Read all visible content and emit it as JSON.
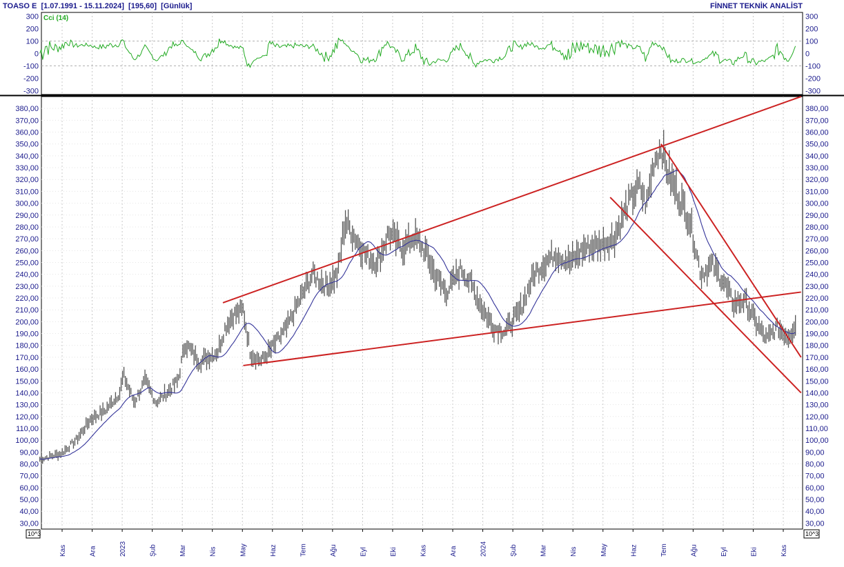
{
  "header": {
    "symbol": "TOASO E",
    "range": "[1.07.1991 - 15.11.2024]",
    "last": "[195,60]",
    "period": "[Günlük]",
    "brand": "FİNNET TEKNİK ANALİST"
  },
  "chart_data": [
    {
      "type": "line",
      "panel": "cci",
      "series_label": "Cci (14)",
      "color": "#22aa22",
      "y_ticks": [
        300,
        200,
        100,
        0,
        -100,
        -200,
        -300
      ],
      "ylim": [
        -330,
        330
      ],
      "guide_levels": [
        100,
        -100
      ],
      "note": "oscillator values sampled along the time axis (x = 0..1 across the plotted date range)"
    },
    {
      "type": "ohlc",
      "panel": "price",
      "ylim": [
        25,
        390
      ],
      "y_ticks": [
        380,
        370,
        360,
        350,
        340,
        330,
        320,
        310,
        300,
        290,
        280,
        270,
        260,
        250,
        240,
        230,
        220,
        210,
        200,
        190,
        180,
        170,
        160,
        150,
        140,
        130,
        120,
        110,
        100,
        90,
        80,
        70,
        60,
        50,
        40,
        30
      ],
      "y_tick_format": "comma2",
      "scale_note": "10^3",
      "x_month_labels": [
        "Kas",
        "Ara",
        "2023",
        "Şub",
        "Mar",
        "Nis",
        "May",
        "Haz",
        "Tem",
        "Ağu",
        "Eyl",
        "Eki",
        "Kas",
        "Ara",
        "2024",
        "Şub",
        "Mar",
        "Nis",
        "May",
        "Haz",
        "Tem",
        "Ağu",
        "Eyl",
        "Eki",
        "Kas"
      ],
      "price_path": [
        [
          0.0,
          84
        ],
        [
          0.03,
          89
        ],
        [
          0.05,
          100
        ],
        [
          0.07,
          118
        ],
        [
          0.09,
          125
        ],
        [
          0.11,
          140
        ],
        [
          0.115,
          155
        ],
        [
          0.13,
          132
        ],
        [
          0.145,
          150
        ],
        [
          0.16,
          132
        ],
        [
          0.175,
          140
        ],
        [
          0.19,
          150
        ],
        [
          0.2,
          182
        ],
        [
          0.22,
          166
        ],
        [
          0.245,
          175
        ],
        [
          0.255,
          195
        ],
        [
          0.265,
          205
        ],
        [
          0.28,
          210
        ],
        [
          0.29,
          173
        ],
        [
          0.305,
          167
        ],
        [
          0.32,
          178
        ],
        [
          0.34,
          195
        ],
        [
          0.355,
          215
        ],
        [
          0.375,
          240
        ],
        [
          0.395,
          230
        ],
        [
          0.41,
          240
        ],
        [
          0.42,
          285
        ],
        [
          0.43,
          275
        ],
        [
          0.45,
          255
        ],
        [
          0.465,
          250
        ],
        [
          0.48,
          275
        ],
        [
          0.5,
          262
        ],
        [
          0.515,
          272
        ],
        [
          0.53,
          260
        ],
        [
          0.545,
          238
        ],
        [
          0.56,
          225
        ],
        [
          0.58,
          245
        ],
        [
          0.595,
          230
        ],
        [
          0.61,
          210
        ],
        [
          0.625,
          195
        ],
        [
          0.64,
          192
        ],
        [
          0.66,
          208
        ],
        [
          0.68,
          240
        ],
        [
          0.695,
          250
        ],
        [
          0.71,
          258
        ],
        [
          0.73,
          250
        ],
        [
          0.75,
          262
        ],
        [
          0.77,
          265
        ],
        [
          0.79,
          270
        ],
        [
          0.81,
          300
        ],
        [
          0.825,
          315
        ],
        [
          0.835,
          298
        ],
        [
          0.845,
          335
        ],
        [
          0.855,
          348
        ],
        [
          0.865,
          325
        ],
        [
          0.88,
          305
        ],
        [
          0.895,
          285
        ],
        [
          0.91,
          240
        ],
        [
          0.925,
          248
        ],
        [
          0.94,
          235
        ],
        [
          0.955,
          215
        ],
        [
          0.97,
          218
        ],
        [
          0.985,
          200
        ],
        [
          1.0,
          185
        ],
        [
          1.015,
          195
        ],
        [
          1.03,
          188
        ],
        [
          1.04,
          197
        ]
      ],
      "moving_average": {
        "color": "#333399"
      },
      "trend_lines": [
        {
          "name": "upper resistance",
          "from": {
            "x": 0.252,
            "y": 216
          },
          "to": {
            "x": 1.0,
            "y": 390
          },
          "color": "#cc2222"
        },
        {
          "name": "lower support",
          "from": {
            "x": 0.28,
            "y": 163
          },
          "to": {
            "x": 1.0,
            "y": 225
          },
          "color": "#cc2222"
        },
        {
          "name": "channel upper",
          "from": {
            "x": 0.855,
            "y": 350
          },
          "to": {
            "x": 1.0,
            "y": 170
          },
          "color": "#cc2222"
        },
        {
          "name": "channel lower",
          "from": {
            "x": 0.785,
            "y": 305
          },
          "to": {
            "x": 1.0,
            "y": 140
          },
          "color": "#cc2222"
        }
      ]
    }
  ]
}
